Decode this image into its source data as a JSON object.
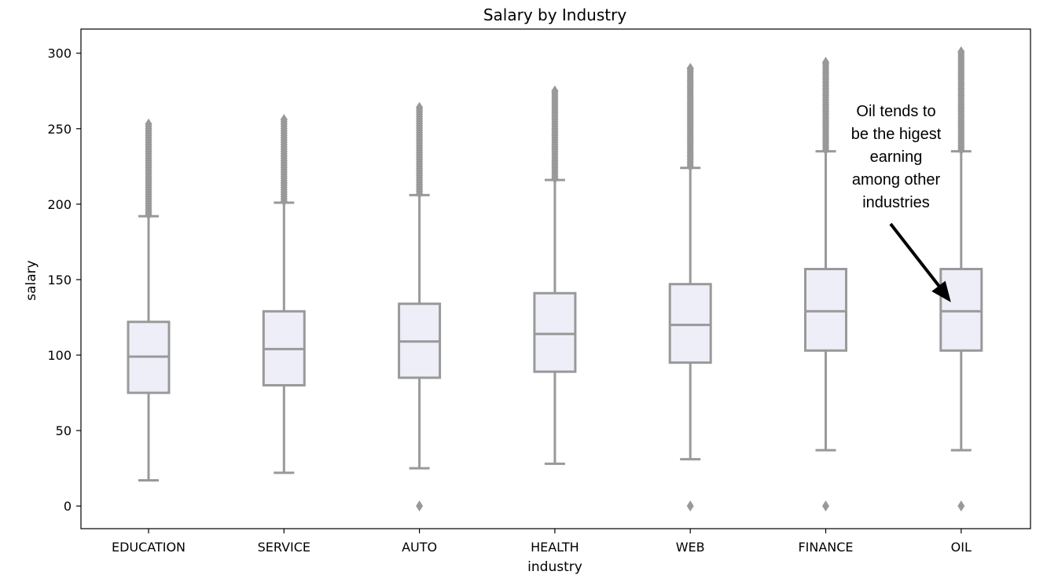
{
  "chart_data": {
    "type": "box",
    "title": "Salary by Industry",
    "xlabel": "industry",
    "ylabel": "salary",
    "ylim": [
      -15,
      316
    ],
    "yticks": [
      0,
      50,
      100,
      150,
      200,
      250,
      300
    ],
    "grid": false,
    "categories": [
      "EDUCATION",
      "SERVICE",
      "AUTO",
      "HEALTH",
      "WEB",
      "FINANCE",
      "OIL"
    ],
    "boxes": [
      {
        "category": "EDUCATION",
        "whisker_low": 17,
        "q1": 75,
        "median": 99,
        "q3": 122,
        "whisker_high": 192,
        "outlier_range": [
          193,
          253
        ],
        "low_outliers": []
      },
      {
        "category": "SERVICE",
        "whisker_low": 22,
        "q1": 80,
        "median": 104,
        "q3": 129,
        "whisker_high": 201,
        "outlier_range": [
          202,
          256
        ],
        "low_outliers": []
      },
      {
        "category": "AUTO",
        "whisker_low": 25,
        "q1": 85,
        "median": 109,
        "q3": 134,
        "whisker_high": 206,
        "outlier_range": [
          207,
          264
        ],
        "low_outliers": [
          0
        ]
      },
      {
        "category": "HEALTH",
        "whisker_low": 28,
        "q1": 89,
        "median": 114,
        "q3": 141,
        "whisker_high": 216,
        "outlier_range": [
          217,
          275
        ],
        "low_outliers": []
      },
      {
        "category": "WEB",
        "whisker_low": 31,
        "q1": 95,
        "median": 120,
        "q3": 147,
        "whisker_high": 224,
        "outlier_range": [
          225,
          290
        ],
        "low_outliers": [
          0
        ]
      },
      {
        "category": "FINANCE",
        "whisker_low": 37,
        "q1": 103,
        "median": 129,
        "q3": 157,
        "whisker_high": 235,
        "outlier_range": [
          236,
          294
        ],
        "low_outliers": [
          0
        ]
      },
      {
        "category": "OIL",
        "whisker_low": 37,
        "q1": 103,
        "median": 129,
        "q3": 157,
        "whisker_high": 235,
        "outlier_range": [
          236,
          301
        ],
        "low_outliers": [
          0
        ]
      }
    ],
    "annotation": {
      "text": "Oil tends to\nbe the higest\nearning\namong other\nindustries",
      "points_to": "OIL"
    },
    "colors": {
      "box_fill": "#eeeef9",
      "box_edge": "#999999",
      "outlier": "#999999",
      "axes": "#000000",
      "text": "#000000",
      "arrow": "#000000"
    }
  }
}
